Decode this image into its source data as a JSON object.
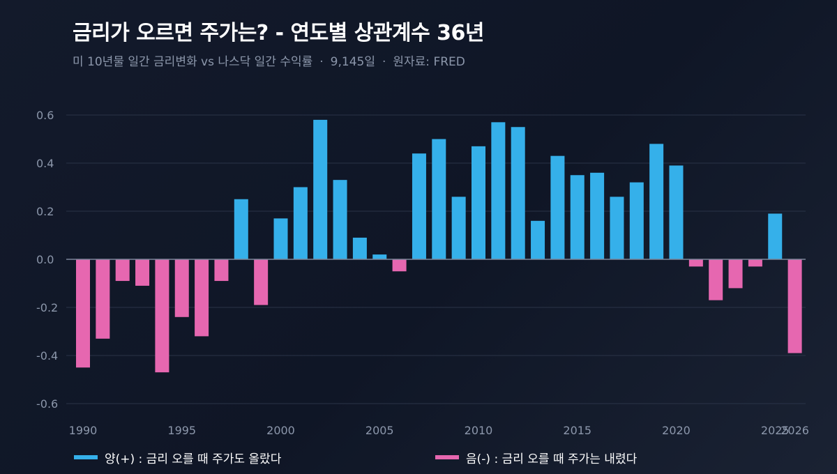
{
  "header": {
    "title": "금리가 오르면 주가는? - 연도별 상관계수 36년",
    "subtitle_parts": [
      "미 10년물 일간 금리변화 vs 나스닥 일간 수익률",
      "9,145일",
      "원자료: FRED"
    ],
    "separator": "·"
  },
  "colors": {
    "positive": "#35b0ea",
    "negative": "#e667b0",
    "grid": "#2a3347",
    "zero_line": "#7c869a",
    "tick_text": "#8c97ab"
  },
  "legend": {
    "positive_label": "양(+) : 금리 오를 때 주가도 올랐다",
    "negative_label": "음(-) : 금리 오를 때 주가는 내렸다"
  },
  "chart_data": {
    "type": "bar",
    "title": "금리가 오르면 주가는? - 연도별 상관계수 36년",
    "xlabel": "",
    "ylabel": "",
    "ylim": [
      -0.65,
      0.65
    ],
    "yticks": [
      0.6,
      0.4,
      0.2,
      0.0,
      -0.2,
      -0.4,
      -0.6
    ],
    "ytick_labels": [
      "0.6",
      "0.4",
      "0.2",
      "0.0",
      "-0.2",
      "-0.4",
      "-0.6"
    ],
    "xticks": [
      1990,
      1995,
      2000,
      2005,
      2010,
      2015,
      2020,
      2025,
      2026
    ],
    "grid": true,
    "legend_placement": "bottom",
    "categories": [
      1990,
      1991,
      1992,
      1993,
      1994,
      1995,
      1996,
      1997,
      1998,
      1999,
      2000,
      2001,
      2002,
      2003,
      2004,
      2005,
      2006,
      2007,
      2008,
      2009,
      2010,
      2011,
      2012,
      2013,
      2014,
      2015,
      2016,
      2017,
      2018,
      2019,
      2020,
      2021,
      2022,
      2023,
      2024,
      2025,
      2026
    ],
    "values": [
      -0.45,
      -0.33,
      -0.09,
      -0.11,
      -0.47,
      -0.24,
      -0.32,
      -0.09,
      0.25,
      -0.19,
      0.17,
      0.3,
      0.58,
      0.33,
      0.09,
      0.02,
      -0.05,
      0.44,
      0.5,
      0.26,
      0.47,
      0.57,
      0.55,
      0.16,
      0.43,
      0.35,
      0.36,
      0.26,
      0.32,
      0.48,
      0.39,
      -0.03,
      -0.17,
      -0.12,
      -0.03,
      0.19,
      -0.39
    ]
  }
}
